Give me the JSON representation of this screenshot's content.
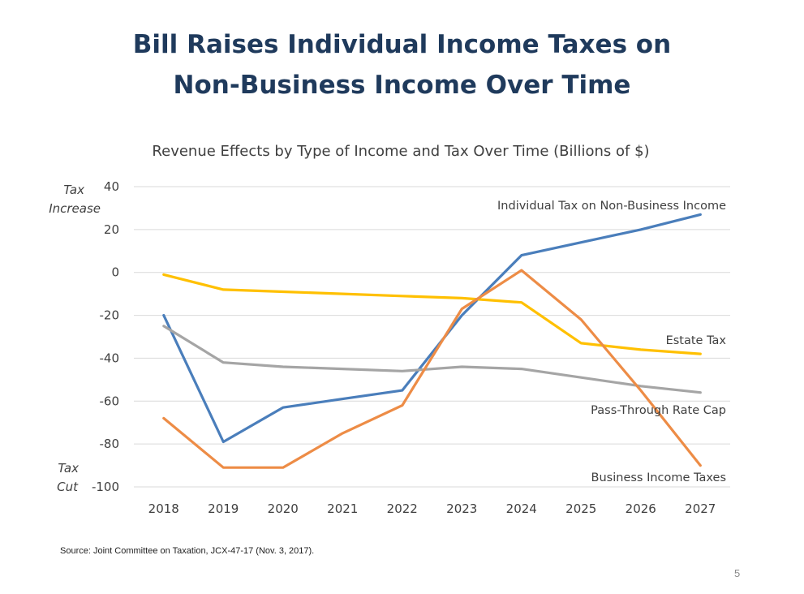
{
  "slide": {
    "title_line1": "Bill Raises Individual Income Taxes on",
    "title_line2": "Non-Business Income Over Time",
    "source": "Source: Joint Committee on Taxation, JCX-47-17 (Nov. 3, 2017).",
    "page_number": "5"
  },
  "chart_data": {
    "type": "line",
    "title": "Revenue Effects by Type of Income and Tax Over Time (Billions of $)",
    "xlabel": "",
    "ylabel": "",
    "ylim": [
      -100,
      40
    ],
    "yticks": [
      40,
      20,
      0,
      -20,
      -40,
      -60,
      -80,
      -100
    ],
    "grid": true,
    "categories": [
      "2018",
      "2019",
      "2020",
      "2021",
      "2022",
      "2023",
      "2024",
      "2025",
      "2026",
      "2027"
    ],
    "axis_annotations": {
      "top_line1": "Tax",
      "top_line2": "Increase",
      "bottom_line1": "Tax",
      "bottom_line2": "Cut"
    },
    "series": [
      {
        "name": "Individual Tax on Non-Business Income",
        "color": "#4a7ebb",
        "values": [
          -20,
          -79,
          -63,
          -59,
          -55,
          -20,
          8,
          14,
          20,
          27
        ]
      },
      {
        "name": "Estate Tax",
        "color": "#ffc000",
        "values": [
          -1,
          -8,
          -9,
          -10,
          -11,
          -12,
          -14,
          -33,
          -36,
          -38
        ]
      },
      {
        "name": "Pass-Through Rate Cap",
        "color": "#a5a5a5",
        "values": [
          -25,
          -42,
          -44,
          -45,
          -46,
          -44,
          -45,
          -49,
          -53,
          -56
        ]
      },
      {
        "name": "Business Income Taxes",
        "color": "#ed8c46",
        "values": [
          -68,
          -91,
          -91,
          -75,
          -62,
          -17,
          1,
          -22,
          -55,
          -90
        ]
      }
    ]
  }
}
